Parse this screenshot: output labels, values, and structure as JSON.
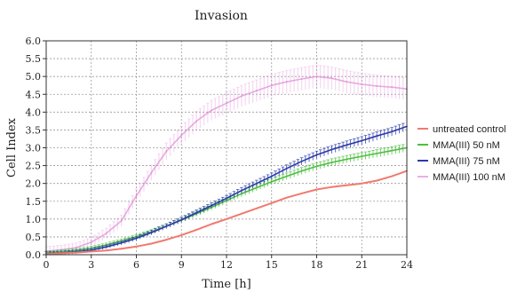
{
  "chart_data": {
    "type": "line",
    "title": "Invasion",
    "xlabel": "Time [h]",
    "ylabel": "Cell Index",
    "xlim": [
      0,
      24
    ],
    "ylim": [
      0,
      6
    ],
    "xticks": [
      0,
      3,
      6,
      9,
      12,
      15,
      18,
      21,
      24
    ],
    "yticks": [
      0,
      0.5,
      1.0,
      1.5,
      2.0,
      2.5,
      3.0,
      3.5,
      4.0,
      4.5,
      5.0,
      5.5,
      6.0
    ],
    "xtick_labels": [
      "0",
      "3",
      "6",
      "9",
      "12",
      "15",
      "18",
      "21",
      "24"
    ],
    "ytick_labels": [
      "0.0",
      "0.5",
      "1.0",
      "1.5",
      "2.0",
      "2.5",
      "3.0",
      "3.5",
      "4.0",
      "4.5",
      "5.0",
      "5.5",
      "6.0"
    ],
    "grid": true,
    "legend_position": "right",
    "series": [
      {
        "name": "untreated control",
        "color": "#f07a6e",
        "error_bars": false,
        "x": [
          0,
          1,
          2,
          3,
          4,
          5,
          6,
          7,
          8,
          9,
          10,
          11,
          12,
          13,
          14,
          15,
          16,
          17,
          18,
          19,
          20,
          21,
          22,
          23,
          24
        ],
        "y": [
          0.02,
          0.04,
          0.06,
          0.09,
          0.12,
          0.17,
          0.23,
          0.31,
          0.42,
          0.55,
          0.7,
          0.86,
          1.0,
          1.15,
          1.3,
          1.45,
          1.6,
          1.72,
          1.83,
          1.9,
          1.95,
          2.0,
          2.08,
          2.2,
          2.35
        ]
      },
      {
        "name": "MMA(III) 50 nM",
        "color": "#4cbf3f",
        "error_bars": true,
        "x": [
          0,
          1,
          2,
          3,
          4,
          5,
          6,
          7,
          8,
          9,
          10,
          11,
          12,
          13,
          14,
          15,
          16,
          17,
          18,
          19,
          20,
          21,
          22,
          23,
          24
        ],
        "y": [
          0.05,
          0.08,
          0.12,
          0.18,
          0.27,
          0.38,
          0.5,
          0.64,
          0.8,
          0.97,
          1.15,
          1.33,
          1.52,
          1.71,
          1.88,
          2.05,
          2.2,
          2.35,
          2.48,
          2.59,
          2.68,
          2.76,
          2.84,
          2.92,
          3.0
        ]
      },
      {
        "name": "MMA(III) 75 nM",
        "color": "#2a3aa8",
        "error_bars": true,
        "x": [
          0,
          1,
          2,
          3,
          4,
          5,
          6,
          7,
          8,
          9,
          10,
          11,
          12,
          13,
          14,
          15,
          16,
          17,
          18,
          19,
          20,
          21,
          22,
          23,
          24
        ],
        "y": [
          0.03,
          0.05,
          0.08,
          0.13,
          0.22,
          0.33,
          0.46,
          0.62,
          0.8,
          0.98,
          1.18,
          1.38,
          1.58,
          1.8,
          2.0,
          2.2,
          2.42,
          2.62,
          2.8,
          2.95,
          3.08,
          3.2,
          3.33,
          3.45,
          3.6
        ]
      },
      {
        "name": "MMA(III) 100 nM",
        "color": "#e08fd6",
        "error_bars": true,
        "x": [
          0,
          1,
          2,
          3,
          4,
          5,
          6,
          7,
          8,
          9,
          10,
          11,
          12,
          13,
          14,
          15,
          16,
          17,
          18,
          19,
          20,
          21,
          22,
          23,
          24
        ],
        "y": [
          0.1,
          0.14,
          0.2,
          0.35,
          0.6,
          0.95,
          1.65,
          2.3,
          2.9,
          3.35,
          3.75,
          4.05,
          4.25,
          4.45,
          4.6,
          4.75,
          4.85,
          4.93,
          5.0,
          4.95,
          4.85,
          4.78,
          4.73,
          4.7,
          4.65
        ]
      }
    ]
  }
}
